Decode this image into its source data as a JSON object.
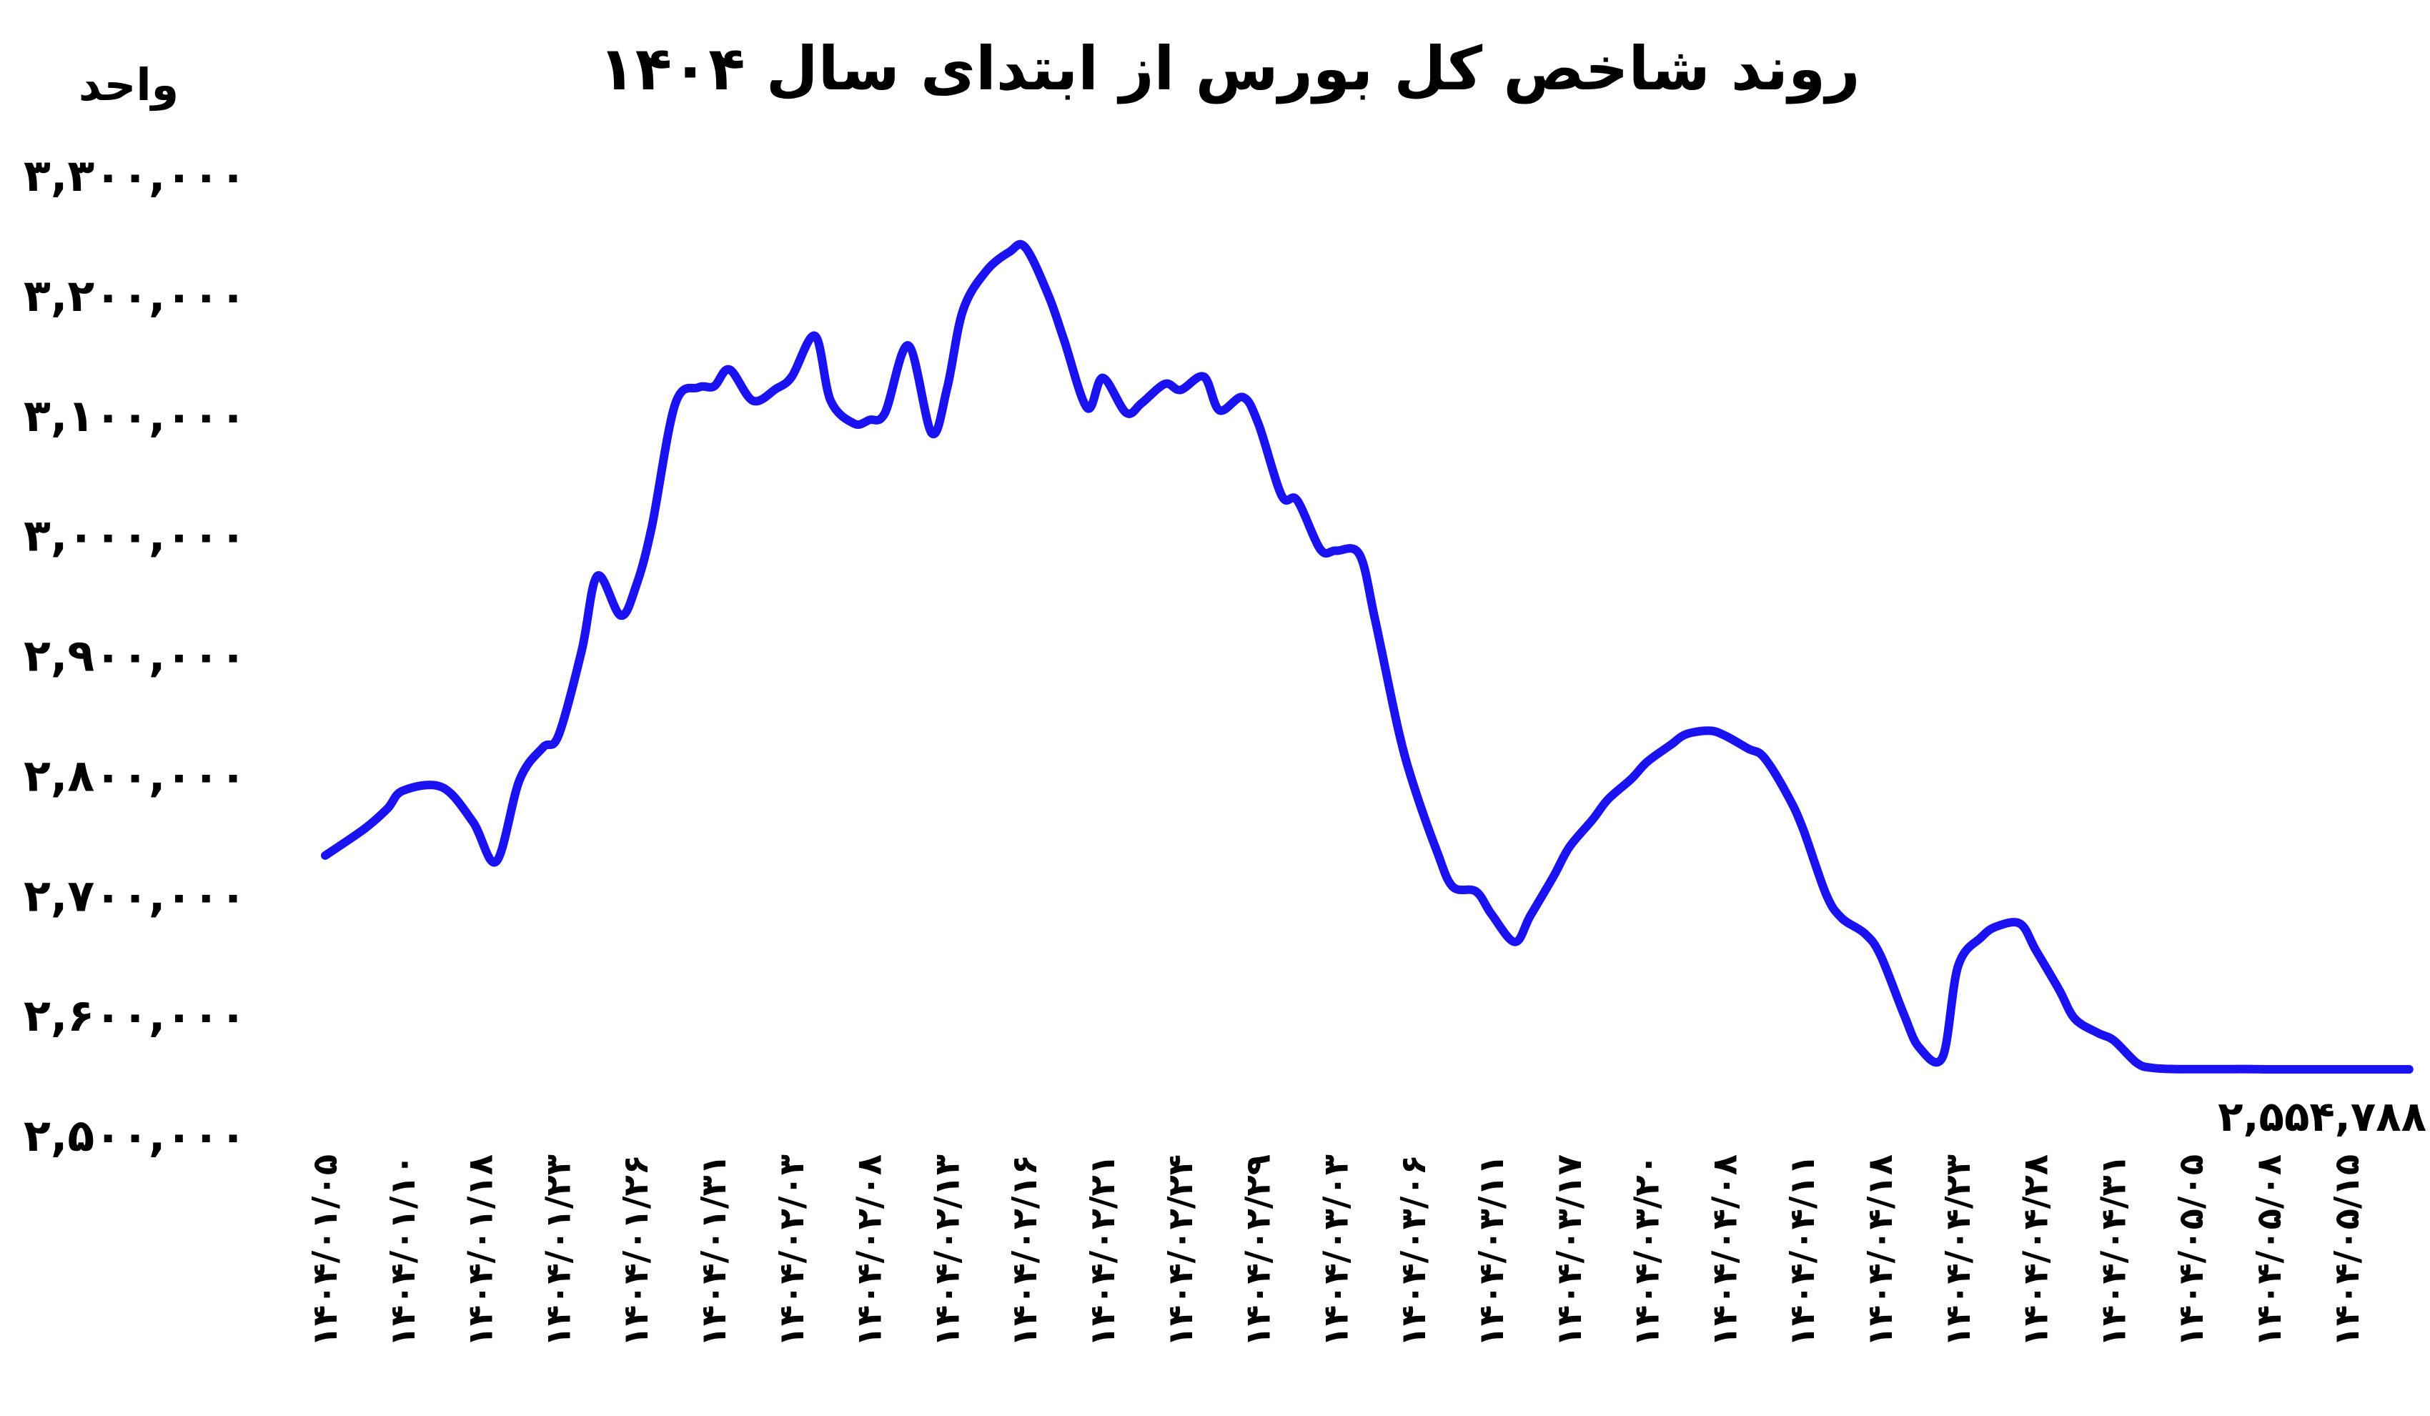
{
  "chart_data": {
    "type": "line",
    "title": "روند شاخص کل بورس از ابتدای سال ۱۴۰۴",
    "ylabel": "واحد",
    "xlabel": "",
    "ylim": [
      2500000,
      3300000
    ],
    "yticks": [
      2500000,
      2600000,
      2700000,
      2800000,
      2900000,
      3000000,
      3100000,
      3200000,
      3300000
    ],
    "ytick_labels": [
      "۲,۵۰۰,۰۰۰",
      "۲,۶۰۰,۰۰۰",
      "۲,۷۰۰,۰۰۰",
      "۲,۸۰۰,۰۰۰",
      "۲,۹۰۰,۰۰۰",
      "۳,۰۰۰,۰۰۰",
      "۳,۱۰۰,۰۰۰",
      "۳,۲۰۰,۰۰۰",
      "۳,۳۰۰,۰۰۰"
    ],
    "x_labels": [
      "۱۴۰۴/۰۱/۰۵",
      "۱۴۰۴/۰۱/۱۰",
      "۱۴۰۴/۰۱/۱۸",
      "۱۴۰۴/۰۱/۲۳",
      "۱۴۰۴/۰۱/۲۶",
      "۱۴۰۴/۰۱/۳۱",
      "۱۴۰۴/۰۲/۰۳",
      "۱۴۰۴/۰۲/۰۸",
      "۱۴۰۴/۰۲/۱۳",
      "۱۴۰۴/۰۲/۱۶",
      "۱۴۰۴/۰۲/۲۱",
      "۱۴۰۴/۰۲/۲۴",
      "۱۴۰۴/۰۲/۲۹",
      "۱۴۰۴/۰۳/۰۳",
      "۱۴۰۴/۰۳/۰۶",
      "۱۴۰۴/۰۳/۱۱",
      "۱۴۰۴/۰۳/۱۷",
      "۱۴۰۴/۰۳/۲۰",
      "۱۴۰۴/۰۴/۰۸",
      "۱۴۰۴/۰۴/۱۱",
      "۱۴۰۴/۰۴/۱۸",
      "۱۴۰۴/۰۴/۲۳",
      "۱۴۰۴/۰۴/۲۸",
      "۱۴۰۴/۰۴/۳۱",
      "۱۴۰۴/۰۵/۰۵",
      "۱۴۰۴/۰۵/۰۸",
      "۱۴۰۴/۰۵/۱۵"
    ],
    "series": [
      {
        "color": "#1a12f0",
        "x": [
          0,
          0.5,
          0.8,
          1.0,
          1.5,
          1.9,
          2.2,
          2.5,
          2.8,
          3.0,
          3.3,
          3.5,
          3.8,
          4.0,
          4.2,
          4.5,
          4.8,
          5.0,
          5.2,
          5.5,
          5.8,
          6.0,
          6.3,
          6.5,
          6.8,
          7.0,
          7.2,
          7.5,
          7.8,
          8.0,
          8.2,
          8.5,
          8.8,
          9.0,
          9.3,
          9.5,
          9.8,
          10.0,
          10.3,
          10.5,
          10.8,
          11.0,
          11.3,
          11.5,
          11.8,
          12.0,
          12.3,
          12.5,
          12.8,
          13.0,
          13.3,
          13.5,
          13.8,
          14.0,
          14.3,
          14.5,
          14.8,
          15.0,
          15.3,
          15.5,
          15.8,
          16.0,
          16.3,
          16.5,
          16.8,
          17.0,
          17.3,
          17.5,
          17.8,
          18.0,
          18.3,
          18.5,
          18.8,
          19.0,
          19.3,
          19.5,
          19.8,
          20.0,
          20.3,
          20.5,
          20.8,
          21.0,
          21.3,
          21.5,
          21.8,
          22.0,
          22.3,
          22.5,
          22.8,
          23.0,
          23.3,
          23.5,
          23.8,
          24.0,
          24.3,
          24.5,
          24.8,
          25.0,
          25.3,
          25.5,
          25.8,
          26.0,
          26.3,
          26.5,
          26.8
        ],
        "values": [
          2733000,
          2755000,
          2772000,
          2787000,
          2790000,
          2761000,
          2728000,
          2796000,
          2823000,
          2833000,
          2904000,
          2966000,
          2933000,
          2958000,
          3007000,
          3109000,
          3123000,
          3124000,
          3138000,
          3112000,
          3122000,
          3132000,
          3166000,
          3112000,
          3093000,
          3096000,
          3102000,
          3158000,
          3085000,
          3123000,
          3187000,
          3220000,
          3236000,
          3240000,
          3200000,
          3163000,
          3106000,
          3131000,
          3102000,
          3110000,
          3126000,
          3121000,
          3132000,
          3104000,
          3115000,
          3093000,
          3033000,
          3029000,
          2988000,
          2987000,
          2984000,
          2930000,
          2838000,
          2791000,
          2736000,
          2707000,
          2703000,
          2684000,
          2661000,
          2683000,
          2716000,
          2740000,
          2763000,
          2780000,
          2797000,
          2811000,
          2825000,
          2834000,
          2837000,
          2833000,
          2822000,
          2815000,
          2784000,
          2756000,
          2701000,
          2681000,
          2668000,
          2650000,
          2601000,
          2573000,
          2565000,
          2641000,
          2665000,
          2674000,
          2676000,
          2654000,
          2621000,
          2597000,
          2585000,
          2579000,
          2560000,
          2556000,
          2555000,
          2555000,
          2555000,
          2555000,
          2555000,
          2554788,
          2554788,
          2554788,
          2554788,
          2554788,
          2554788,
          2554788,
          2554788
        ]
      }
    ],
    "last_value_label": "۲,۵۵۴,۷۸۸",
    "grid": false,
    "legend": "none"
  }
}
